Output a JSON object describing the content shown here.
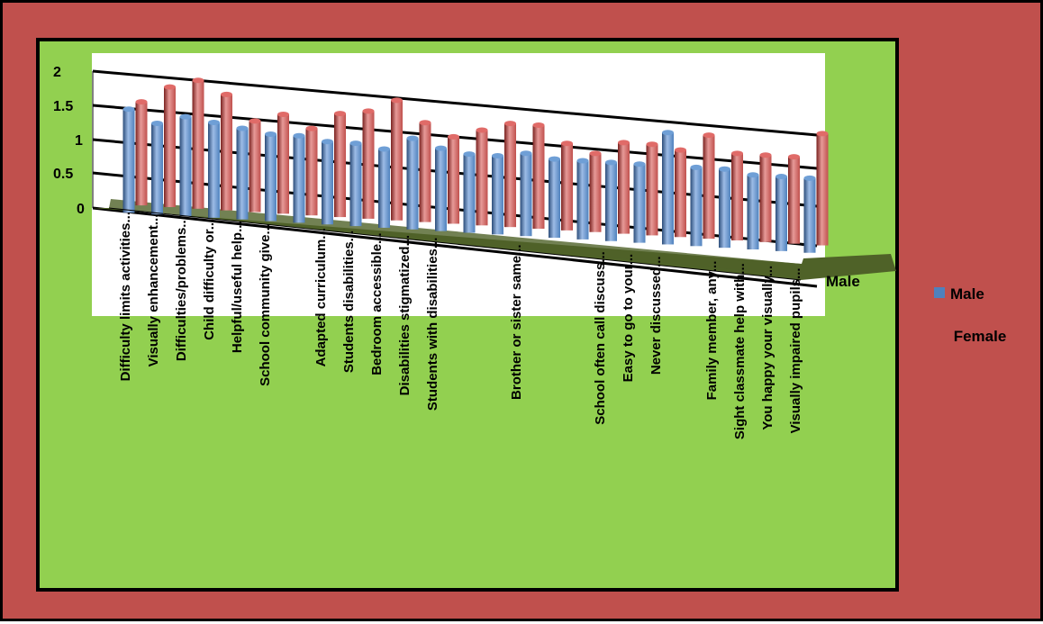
{
  "colors": {
    "background": "#c0504d",
    "plot_area": "#92d050",
    "inner_panel": "#ffffff",
    "floor": "#4f6228",
    "male": "#4f81bd",
    "female": "#c0504d"
  },
  "chart_data": {
    "type": "bar",
    "style": "3d-clustered-column",
    "grid": true,
    "legend_position": "right",
    "ylim": [
      0,
      2
    ],
    "y_ticks": [
      "0",
      "0.5",
      "1",
      "1.5",
      "2"
    ],
    "depth_axis_label": "Male",
    "categories": [
      "Difficulty limits activities...",
      "Visually enhancement...",
      "Difficulties/problems...",
      "Child difficulty or...",
      "Helpful/useful help...",
      "School community give...",
      "",
      "Adapted curriculum...",
      "Students disabilities...",
      "Bedroom accessible...",
      "Disabilities stigmatized...",
      "Students with disabilities...",
      "",
      "",
      "Brother or sister same...",
      "",
      "",
      "School often call discuss...",
      "Easy to go to your...",
      "Never discussed...",
      "",
      "Family member, any...",
      "Sight classmate help with...",
      "You happy your visually...",
      "Visually impaired pupils..."
    ],
    "series": [
      {
        "name": "Male",
        "values": [
          1.25,
          1.1,
          1.2,
          1.15,
          1.1,
          1.05,
          1.05,
          1.0,
          1.0,
          0.95,
          1.1,
          1.0,
          0.95,
          0.95,
          1.0,
          0.95,
          0.95,
          0.95,
          0.95,
          1.35,
          0.95,
          0.95,
          0.9,
          0.9,
          0.9
        ]
      },
      {
        "name": "Female",
        "values": [
          1.25,
          1.45,
          1.55,
          1.4,
          1.1,
          1.2,
          1.05,
          1.25,
          1.3,
          1.45,
          1.2,
          1.05,
          1.15,
          1.25,
          1.25,
          1.05,
          0.95,
          1.1,
          1.1,
          1.05,
          1.25,
          1.05,
          1.05,
          1.05,
          1.35
        ]
      }
    ]
  }
}
